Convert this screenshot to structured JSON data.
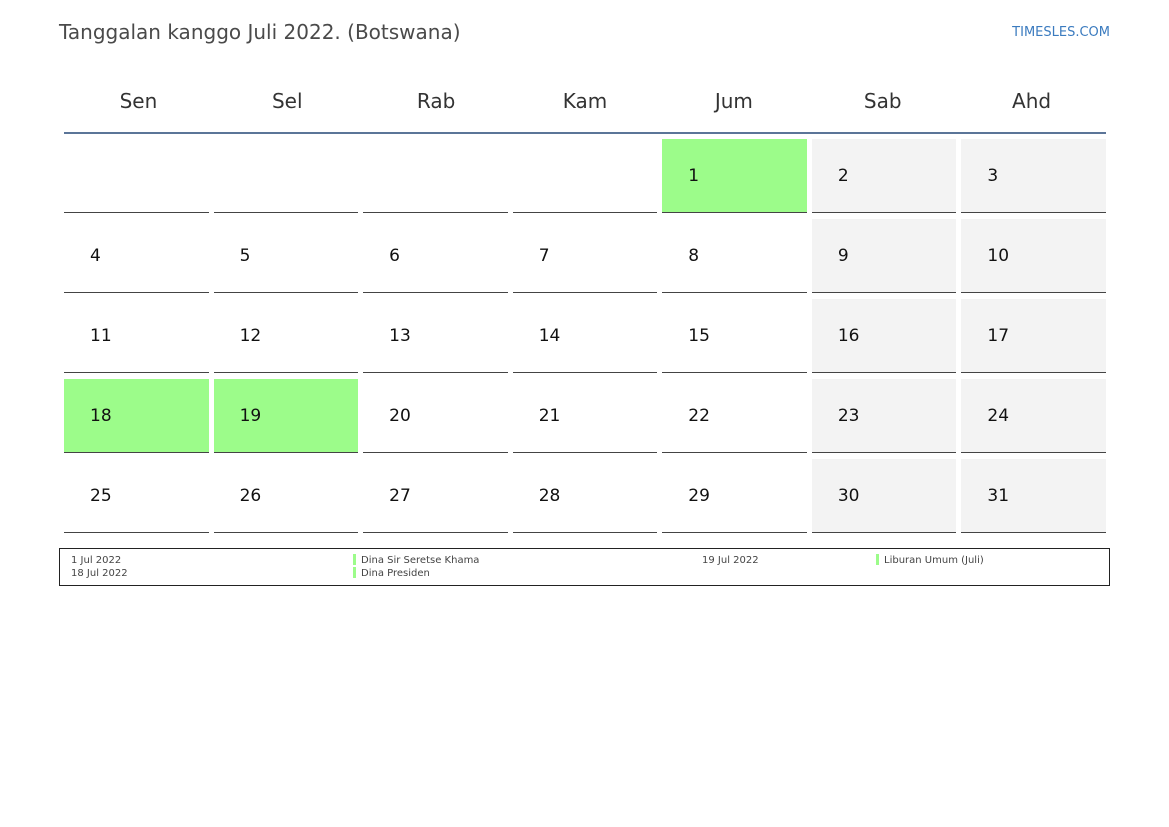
{
  "header": {
    "title": "Tanggalan kanggo Juli 2022. (Botswana)",
    "brand": "TIMESLES.COM"
  },
  "calendar": {
    "weekdays": [
      "Sen",
      "Sel",
      "Rab",
      "Kam",
      "Jum",
      "Sab",
      "Ahd"
    ],
    "weeks": [
      [
        "",
        "",
        "",
        "",
        "1",
        "2",
        "3"
      ],
      [
        "4",
        "5",
        "6",
        "7",
        "8",
        "9",
        "10"
      ],
      [
        "11",
        "12",
        "13",
        "14",
        "15",
        "16",
        "17"
      ],
      [
        "18",
        "19",
        "20",
        "21",
        "22",
        "23",
        "24"
      ],
      [
        "25",
        "26",
        "27",
        "28",
        "29",
        "30",
        "31"
      ]
    ],
    "holidays": [
      "1",
      "18",
      "19"
    ],
    "colors": {
      "holiday": "#9cfc8a",
      "weekend": "#f3f3f3",
      "header_rule": "#5b7598",
      "brand": "#3b7bbf"
    }
  },
  "legend": {
    "col1": [
      "1 Jul 2022",
      "18 Jul 2022"
    ],
    "col2": [
      "Dina Sir Seretse Khama",
      "Dina Presiden"
    ],
    "col3": [
      "19 Jul 2022"
    ],
    "col4": [
      "Liburan Umum (Juli)"
    ]
  }
}
